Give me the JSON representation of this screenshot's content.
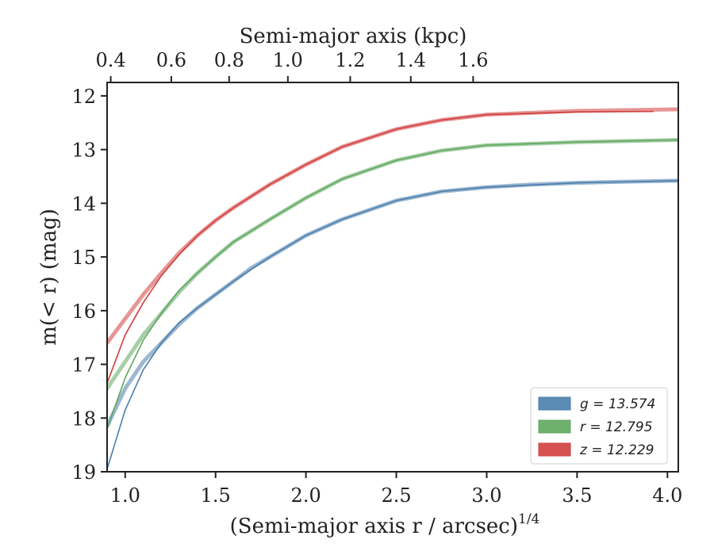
{
  "chart_data": {
    "type": "line",
    "title": "",
    "xlabel": "(Semi-major axis r / arcsec)",
    "xlabel_sup": "1/4",
    "ylabel": "m(< r) (mag)",
    "top_xlabel": "Semi-major axis (kpc)",
    "xlim": [
      0.9,
      4.06
    ],
    "ylim": [
      19.0,
      11.75
    ],
    "y_inverted": true,
    "xticks": [
      1.0,
      1.5,
      2.0,
      2.5,
      3.0,
      3.5,
      4.0
    ],
    "xtick_labels": [
      "1.0",
      "1.5",
      "2.0",
      "2.5",
      "3.0",
      "3.5",
      "4.0"
    ],
    "yticks": [
      12,
      13,
      14,
      15,
      16,
      17,
      18,
      19
    ],
    "ytick_labels": [
      "12",
      "13",
      "14",
      "15",
      "16",
      "17",
      "18",
      "19"
    ],
    "top_xticks_kpc": [
      0.4,
      0.6,
      0.8,
      1.0,
      1.2,
      1.4,
      1.6
    ],
    "top_xtick_labels": [
      "0.4",
      "0.6",
      "0.8",
      "1.0",
      "1.2",
      "1.4",
      "1.6"
    ],
    "top_xtick_positions": [
      0.92,
      1.255,
      1.575,
      1.9,
      2.245,
      2.58,
      2.925
    ],
    "grid": false,
    "legend_position": "lower-right",
    "series": [
      {
        "name": "g = 13.574",
        "color": "#4a7eac",
        "data_band": {
          "x": [
            0.9,
            1.0,
            1.1,
            1.2,
            1.3,
            1.4,
            1.5,
            1.6,
            1.7,
            1.8,
            2.0,
            2.2,
            2.5,
            2.75,
            3.0,
            3.25,
            3.5,
            3.75,
            4.06
          ],
          "y": [
            18.15,
            17.45,
            16.95,
            16.6,
            16.25,
            15.95,
            15.7,
            15.45,
            15.2,
            15.0,
            14.6,
            14.3,
            13.95,
            13.78,
            13.7,
            13.65,
            13.62,
            13.6,
            13.58
          ]
        },
        "model": {
          "x": [
            0.9,
            1.0,
            1.1,
            1.2,
            1.3,
            1.4,
            1.5,
            1.6,
            1.8,
            2.0,
            2.2,
            2.5,
            2.75,
            3.0,
            3.5,
            4.06
          ],
          "y": [
            18.95,
            17.85,
            17.1,
            16.6,
            16.22,
            15.95,
            15.7,
            15.45,
            15.0,
            14.6,
            14.3,
            13.95,
            13.78,
            13.7,
            13.62,
            13.58
          ]
        }
      },
      {
        "name": "r = 12.795",
        "color": "#5fa75f",
        "data_band": {
          "x": [
            0.9,
            1.0,
            1.1,
            1.2,
            1.3,
            1.4,
            1.5,
            1.6,
            1.8,
            2.0,
            2.2,
            2.5,
            2.75,
            3.0,
            3.5,
            4.06
          ],
          "y": [
            17.45,
            16.95,
            16.45,
            16.05,
            15.65,
            15.3,
            15.0,
            14.72,
            14.3,
            13.9,
            13.55,
            13.2,
            13.02,
            12.92,
            12.86,
            12.82
          ]
        },
        "model": {
          "x": [
            0.9,
            1.0,
            1.1,
            1.2,
            1.3,
            1.4,
            1.5,
            1.6,
            1.8,
            2.0,
            2.2,
            2.5,
            2.75,
            3.0,
            3.5,
            4.06
          ],
          "y": [
            18.2,
            17.25,
            16.55,
            16.05,
            15.62,
            15.3,
            15.0,
            14.72,
            14.3,
            13.9,
            13.55,
            13.2,
            13.02,
            12.92,
            12.86,
            12.82
          ]
        }
      },
      {
        "name": "z = 12.229",
        "color": "#d23f3f",
        "data_band": {
          "x": [
            0.9,
            1.0,
            1.1,
            1.2,
            1.3,
            1.4,
            1.5,
            1.6,
            1.8,
            2.0,
            2.2,
            2.5,
            2.75,
            3.0,
            3.5,
            4.06
          ],
          "y": [
            16.6,
            16.15,
            15.7,
            15.3,
            14.92,
            14.6,
            14.32,
            14.08,
            13.65,
            13.28,
            12.95,
            12.62,
            12.45,
            12.35,
            12.28,
            12.25
          ]
        },
        "model": {
          "x": [
            0.9,
            1.0,
            1.1,
            1.2,
            1.3,
            1.4,
            1.5,
            1.6,
            1.8,
            2.0,
            2.2,
            2.5,
            2.75,
            3.0,
            3.5,
            3.92
          ],
          "y": [
            17.35,
            16.45,
            15.85,
            15.35,
            14.95,
            14.6,
            14.32,
            14.08,
            13.65,
            13.28,
            12.95,
            12.62,
            12.45,
            12.35,
            12.3,
            12.29
          ]
        }
      }
    ]
  }
}
